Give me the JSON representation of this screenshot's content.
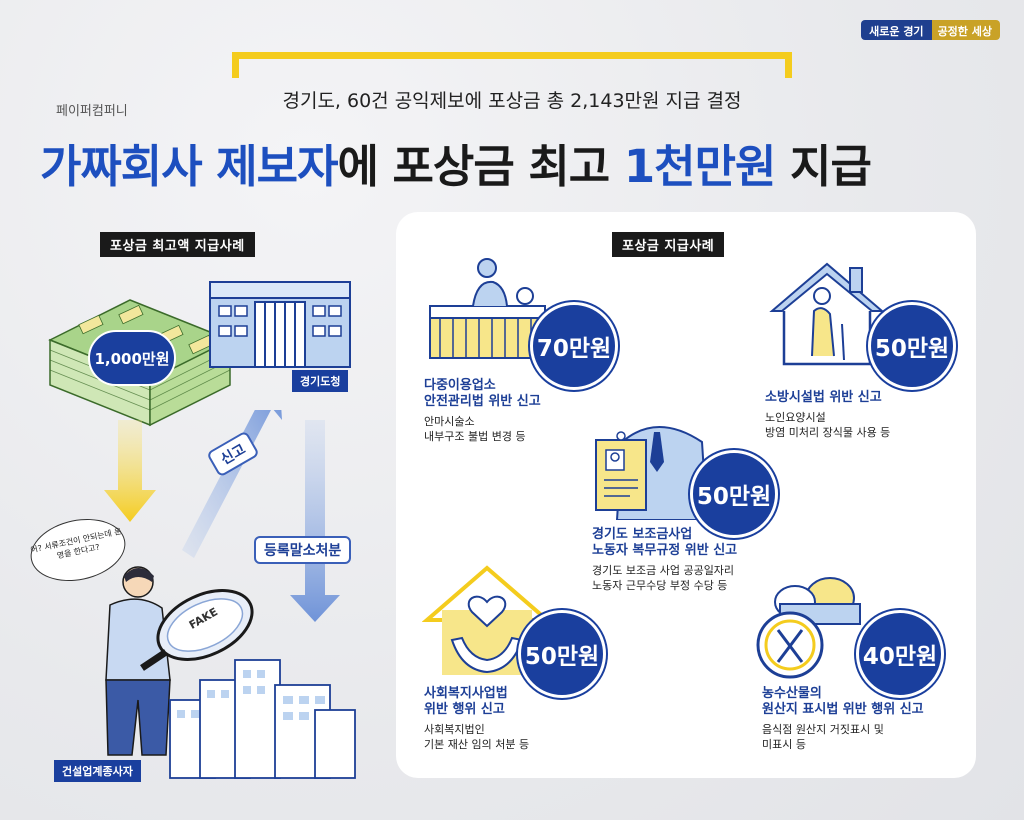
{
  "brand": {
    "part1": "새로운 경기",
    "part2": "공정한 세상"
  },
  "header": {
    "subtitle": "경기도, 60건 공익제보에 포상금 총 2,143만원 지급 결정",
    "company": "페이퍼컴퍼니",
    "headline_blue1": "가짜회사 제보자",
    "headline_black1": "에 포상금 최고 ",
    "headline_blue2": "1천만원",
    "headline_black2": " 지급"
  },
  "left_section": {
    "label": "포상금 최고액 지급사례",
    "money_amount": "1,000만원",
    "building_label": "경기도청",
    "report_label": "신고",
    "cancel_label": "등록말소처분",
    "speech_bubble": "어? 서류조건이 안되는데 운영을 한다고?",
    "fake_label": "FAKE",
    "worker_label": "건설업계종사자"
  },
  "right_section": {
    "label": "포상금 지급사례",
    "cases": [
      {
        "amount": "70만원",
        "title": "다중이용업소\n안전관리법 위반 신고",
        "desc": "안마시술소\n내부구조 불법 변경 등"
      },
      {
        "amount": "50만원",
        "title": "소방시설법 위반 신고",
        "desc": "노인요양시설\n방염 미처리 장식물 사용 등"
      },
      {
        "amount": "50만원",
        "title": "경기도 보조금사업\n노동자 복무규정 위반 신고",
        "desc": "경기도 보조금 사업 공공일자리\n노동자 근무수당 부정 수당 등"
      },
      {
        "amount": "50만원",
        "title": "사회복지사업법\n위반 행위 신고",
        "desc": "사회복지법인\n기본 재산 임의 처분 등"
      },
      {
        "amount": "40만원",
        "title": "농수산물의\n원산지 표시법 위반 행위 신고",
        "desc": "음식점 원산지 거짓표시 및\n미표시 등"
      }
    ]
  },
  "colors": {
    "navy": "#1a3f9e",
    "blue": "#1d4fbf",
    "yellow": "#f4cc1e",
    "gold": "#c9a227"
  }
}
